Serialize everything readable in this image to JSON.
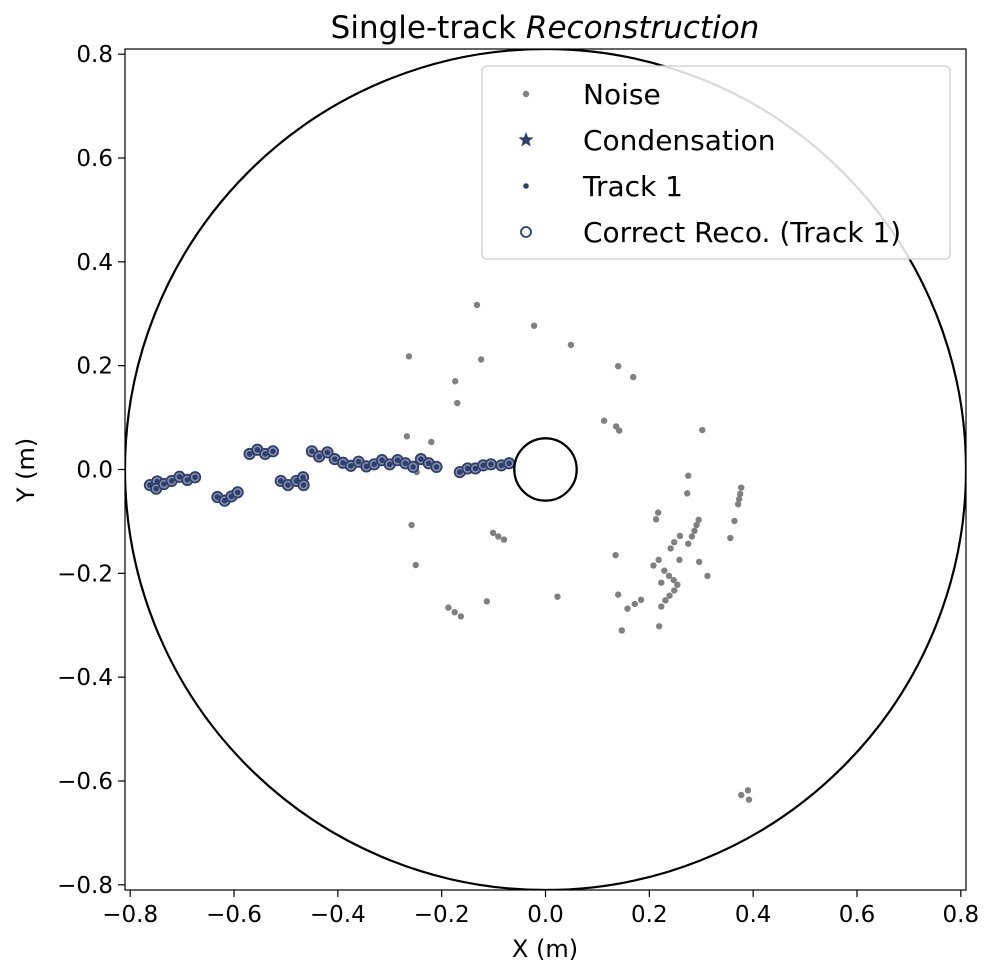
{
  "chart_data": {
    "type": "scatter",
    "title": "Single-track",
    "title_italic": "Reconstruction",
    "xlabel": "X (m)",
    "ylabel": "Y (m)",
    "xlim": [
      -0.81,
      0.81
    ],
    "ylim": [
      -0.81,
      0.81
    ],
    "xticks": [
      -0.8,
      -0.6,
      -0.4,
      -0.2,
      0.0,
      0.2,
      0.4,
      0.6,
      0.8
    ],
    "yticks": [
      -0.8,
      -0.6,
      -0.4,
      -0.2,
      0.0,
      0.2,
      0.4,
      0.6,
      0.8
    ],
    "xtick_labels": [
      "−0.8",
      "−0.6",
      "−0.4",
      "−0.2",
      "0.0",
      "0.2",
      "0.4",
      "0.6",
      "0.8"
    ],
    "ytick_labels": [
      "−0.8",
      "−0.6",
      "−0.4",
      "−0.2",
      "0.0",
      "0.2",
      "0.4",
      "0.6",
      "0.8"
    ],
    "grid": false,
    "legend_position": "top-right",
    "detector_circles": [
      {
        "name": "outer",
        "cx": 0,
        "cy": 0,
        "r": 0.81
      },
      {
        "name": "inner",
        "cx": 0,
        "cy": 0,
        "r": 0.06
      }
    ],
    "colors": {
      "noise": "#808080",
      "track": "#2e3f6e",
      "circle": "#000000"
    },
    "legend": [
      {
        "label": "Noise",
        "marker": "dot",
        "color": "#808080"
      },
      {
        "label": "Condensation",
        "marker": "star",
        "color": "#2e3f6e"
      },
      {
        "label": "Track 1",
        "marker": "dot",
        "color": "#2e3f6e"
      },
      {
        "label": "Correct Reco. (Track 1)",
        "marker": "ring",
        "color": "#2e3f6e"
      }
    ],
    "series": [
      {
        "name": "Noise",
        "points": [
          [
            -0.132,
            0.317
          ],
          [
            -0.022,
            0.277
          ],
          [
            0.049,
            0.24
          ],
          [
            -0.263,
            0.218
          ],
          [
            -0.124,
            0.212
          ],
          [
            0.14,
            0.199
          ],
          [
            0.169,
            0.178
          ],
          [
            -0.174,
            0.17
          ],
          [
            -0.17,
            0.128
          ],
          [
            0.113,
            0.094
          ],
          [
            0.136,
            0.083
          ],
          [
            0.142,
            0.075
          ],
          [
            0.302,
            0.076
          ],
          [
            -0.267,
            0.064
          ],
          [
            -0.22,
            0.053
          ],
          [
            -0.248,
            -0.005
          ],
          [
            0.275,
            -0.012
          ],
          [
            0.377,
            -0.035
          ],
          [
            0.375,
            -0.047
          ],
          [
            0.373,
            -0.057
          ],
          [
            0.371,
            -0.067
          ],
          [
            0.273,
            -0.046
          ],
          [
            0.217,
            -0.083
          ],
          [
            0.213,
            -0.096
          ],
          [
            0.295,
            -0.097
          ],
          [
            0.291,
            -0.107
          ],
          [
            0.287,
            -0.118
          ],
          [
            0.282,
            -0.129
          ],
          [
            0.275,
            -0.143
          ],
          [
            0.364,
            -0.099
          ],
          [
            0.356,
            -0.132
          ],
          [
            0.259,
            -0.128
          ],
          [
            0.248,
            -0.14
          ],
          [
            0.241,
            -0.152
          ],
          [
            -0.258,
            -0.107
          ],
          [
            -0.101,
            -0.122
          ],
          [
            -0.091,
            -0.129
          ],
          [
            -0.08,
            -0.135
          ],
          [
            0.135,
            -0.165
          ],
          [
            0.218,
            -0.174
          ],
          [
            0.208,
            -0.185
          ],
          [
            0.296,
            -0.178
          ],
          [
            0.312,
            -0.205
          ],
          [
            0.258,
            -0.174
          ],
          [
            -0.25,
            -0.184
          ],
          [
            0.229,
            -0.195
          ],
          [
            0.238,
            -0.205
          ],
          [
            0.247,
            -0.213
          ],
          [
            0.223,
            -0.218
          ],
          [
            0.254,
            -0.222
          ],
          [
            0.248,
            -0.233
          ],
          [
            0.239,
            -0.243
          ],
          [
            0.231,
            -0.252
          ],
          [
            0.223,
            -0.264
          ],
          [
            0.14,
            -0.241
          ],
          [
            0.184,
            -0.251
          ],
          [
            0.172,
            -0.259
          ],
          [
            0.158,
            -0.268
          ],
          [
            0.023,
            -0.245
          ],
          [
            -0.113,
            -0.254
          ],
          [
            -0.187,
            -0.266
          ],
          [
            -0.175,
            -0.275
          ],
          [
            -0.163,
            -0.283
          ],
          [
            0.219,
            -0.302
          ],
          [
            0.147,
            -0.31
          ],
          [
            0.377,
            -0.627
          ],
          [
            0.39,
            -0.618
          ],
          [
            0.392,
            -0.636
          ]
        ]
      },
      {
        "name": "Track 1",
        "points": [
          [
            -0.762,
            -0.03
          ],
          [
            -0.748,
            -0.023
          ],
          [
            -0.75,
            -0.037
          ],
          [
            -0.735,
            -0.028
          ],
          [
            -0.72,
            -0.022
          ],
          [
            -0.705,
            -0.014
          ],
          [
            -0.69,
            -0.02
          ],
          [
            -0.675,
            -0.015
          ],
          [
            -0.632,
            -0.053
          ],
          [
            -0.618,
            -0.06
          ],
          [
            -0.605,
            -0.052
          ],
          [
            -0.593,
            -0.044
          ],
          [
            -0.57,
            0.03
          ],
          [
            -0.555,
            0.038
          ],
          [
            -0.54,
            0.03
          ],
          [
            -0.525,
            0.035
          ],
          [
            -0.51,
            -0.022
          ],
          [
            -0.496,
            -0.03
          ],
          [
            -0.48,
            -0.022
          ],
          [
            -0.467,
            -0.015
          ],
          [
            -0.466,
            -0.03
          ],
          [
            -0.45,
            0.035
          ],
          [
            -0.436,
            0.025
          ],
          [
            -0.42,
            0.033
          ],
          [
            -0.406,
            0.02
          ],
          [
            -0.39,
            0.013
          ],
          [
            -0.375,
            0.007
          ],
          [
            -0.36,
            0.015
          ],
          [
            -0.345,
            0.006
          ],
          [
            -0.33,
            0.01
          ],
          [
            -0.315,
            0.018
          ],
          [
            -0.3,
            0.01
          ],
          [
            -0.285,
            0.018
          ],
          [
            -0.27,
            0.012
          ],
          [
            -0.255,
            0.005
          ],
          [
            -0.24,
            0.02
          ],
          [
            -0.225,
            0.012
          ],
          [
            -0.21,
            0.005
          ],
          [
            -0.165,
            -0.005
          ],
          [
            -0.15,
            0.002
          ],
          [
            -0.135,
            0.002
          ],
          [
            -0.12,
            0.008
          ],
          [
            -0.105,
            0.01
          ],
          [
            -0.085,
            0.008
          ],
          [
            -0.07,
            0.012
          ]
        ]
      },
      {
        "name": "Correct Reco. (Track 1)",
        "points": [
          [
            -0.762,
            -0.03
          ],
          [
            -0.748,
            -0.023
          ],
          [
            -0.75,
            -0.037
          ],
          [
            -0.735,
            -0.028
          ],
          [
            -0.72,
            -0.022
          ],
          [
            -0.705,
            -0.014
          ],
          [
            -0.69,
            -0.02
          ],
          [
            -0.675,
            -0.015
          ],
          [
            -0.632,
            -0.053
          ],
          [
            -0.618,
            -0.06
          ],
          [
            -0.605,
            -0.052
          ],
          [
            -0.593,
            -0.044
          ],
          [
            -0.57,
            0.03
          ],
          [
            -0.555,
            0.038
          ],
          [
            -0.54,
            0.03
          ],
          [
            -0.525,
            0.035
          ],
          [
            -0.51,
            -0.022
          ],
          [
            -0.496,
            -0.03
          ],
          [
            -0.48,
            -0.022
          ],
          [
            -0.467,
            -0.015
          ],
          [
            -0.466,
            -0.03
          ],
          [
            -0.45,
            0.035
          ],
          [
            -0.436,
            0.025
          ],
          [
            -0.42,
            0.033
          ],
          [
            -0.406,
            0.02
          ],
          [
            -0.39,
            0.013
          ],
          [
            -0.375,
            0.007
          ],
          [
            -0.36,
            0.015
          ],
          [
            -0.345,
            0.006
          ],
          [
            -0.33,
            0.01
          ],
          [
            -0.315,
            0.018
          ],
          [
            -0.3,
            0.01
          ],
          [
            -0.285,
            0.018
          ],
          [
            -0.27,
            0.012
          ],
          [
            -0.255,
            0.005
          ],
          [
            -0.24,
            0.02
          ],
          [
            -0.225,
            0.012
          ],
          [
            -0.21,
            0.005
          ],
          [
            -0.165,
            -0.005
          ],
          [
            -0.15,
            0.002
          ],
          [
            -0.135,
            0.002
          ],
          [
            -0.12,
            0.008
          ],
          [
            -0.105,
            0.01
          ],
          [
            -0.085,
            0.008
          ],
          [
            -0.07,
            0.012
          ]
        ]
      }
    ]
  }
}
